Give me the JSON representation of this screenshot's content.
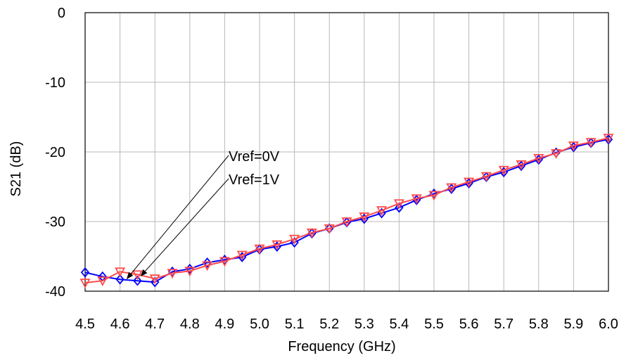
{
  "chart_data": {
    "type": "line",
    "xlabel": "Frequency (GHz)",
    "ylabel": "S21 (dB)",
    "xlim": [
      4.5,
      6.0
    ],
    "ylim": [
      -40,
      0
    ],
    "xticks": [
      "4.5",
      "4.6",
      "4.7",
      "4.8",
      "4.9",
      "5.0",
      "5.1",
      "5.2",
      "5.3",
      "5.4",
      "5.5",
      "5.6",
      "5.7",
      "5.8",
      "5.9",
      "6.0"
    ],
    "yticks": [
      "0",
      "-10",
      "-20",
      "-30",
      "-40"
    ],
    "grid": true,
    "x": [
      4.5,
      4.55,
      4.6,
      4.65,
      4.7,
      4.75,
      4.8,
      4.85,
      4.9,
      4.95,
      5.0,
      5.05,
      5.1,
      5.15,
      5.2,
      5.25,
      5.3,
      5.35,
      5.4,
      5.45,
      5.5,
      5.55,
      5.6,
      5.65,
      5.7,
      5.75,
      5.8,
      5.85,
      5.9,
      5.95,
      6.0
    ],
    "series": [
      {
        "color": "#0000ff",
        "marker": "diamond",
        "values": [
          -37.3,
          -37.9,
          -38.3,
          -38.5,
          -38.7,
          -37.2,
          -36.8,
          -35.9,
          -35.5,
          -35.1,
          -34.0,
          -33.6,
          -33.0,
          -31.7,
          -31.0,
          -30.1,
          -29.6,
          -28.8,
          -28.0,
          -26.9,
          -26.0,
          -25.3,
          -24.5,
          -23.6,
          -22.9,
          -22.0,
          -21.1,
          -20.1,
          -19.3,
          -18.7,
          -18.2
        ]
      },
      {
        "color": "#ff4a4a",
        "marker": "triangle-down",
        "values": [
          -38.8,
          -38.5,
          -37.2,
          -37.6,
          -38.2,
          -37.4,
          -37.1,
          -36.3,
          -35.7,
          -34.8,
          -33.9,
          -33.3,
          -32.5,
          -31.6,
          -31.0,
          -30.0,
          -29.3,
          -28.4,
          -27.4,
          -26.7,
          -26.2,
          -25.1,
          -24.3,
          -23.5,
          -22.6,
          -21.8,
          -20.9,
          -20.2,
          -19.1,
          -18.6,
          -18.0
        ]
      }
    ],
    "annotations": [
      {
        "text": "Vref=0V",
        "target_x": 4.62,
        "target_y": -38.2
      },
      {
        "text": "Vref=1V",
        "target_x": 4.66,
        "target_y": -37.8
      }
    ]
  }
}
